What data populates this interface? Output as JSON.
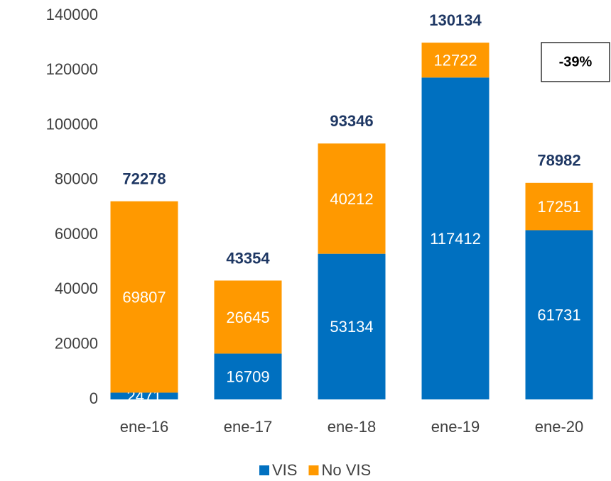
{
  "chart_data": {
    "type": "stacked_bar",
    "categories": [
      "ene-16",
      "ene-17",
      "ene-18",
      "ene-19",
      "ene-20"
    ],
    "series": [
      {
        "name": "VIS",
        "color": "#0070c0",
        "values": [
          2471,
          16709,
          53134,
          117412,
          61731
        ]
      },
      {
        "name": "No VIS",
        "color": "#ff9900",
        "values": [
          69807,
          26645,
          40212,
          12722,
          17251
        ]
      }
    ],
    "totals": [
      72278,
      43354,
      93346,
      130134,
      78982
    ],
    "annotation": "-39%",
    "ylim": [
      0,
      140000
    ],
    "yticks": [
      0,
      20000,
      40000,
      60000,
      80000,
      100000,
      120000,
      140000
    ],
    "grid": false,
    "legend": "bottom"
  }
}
